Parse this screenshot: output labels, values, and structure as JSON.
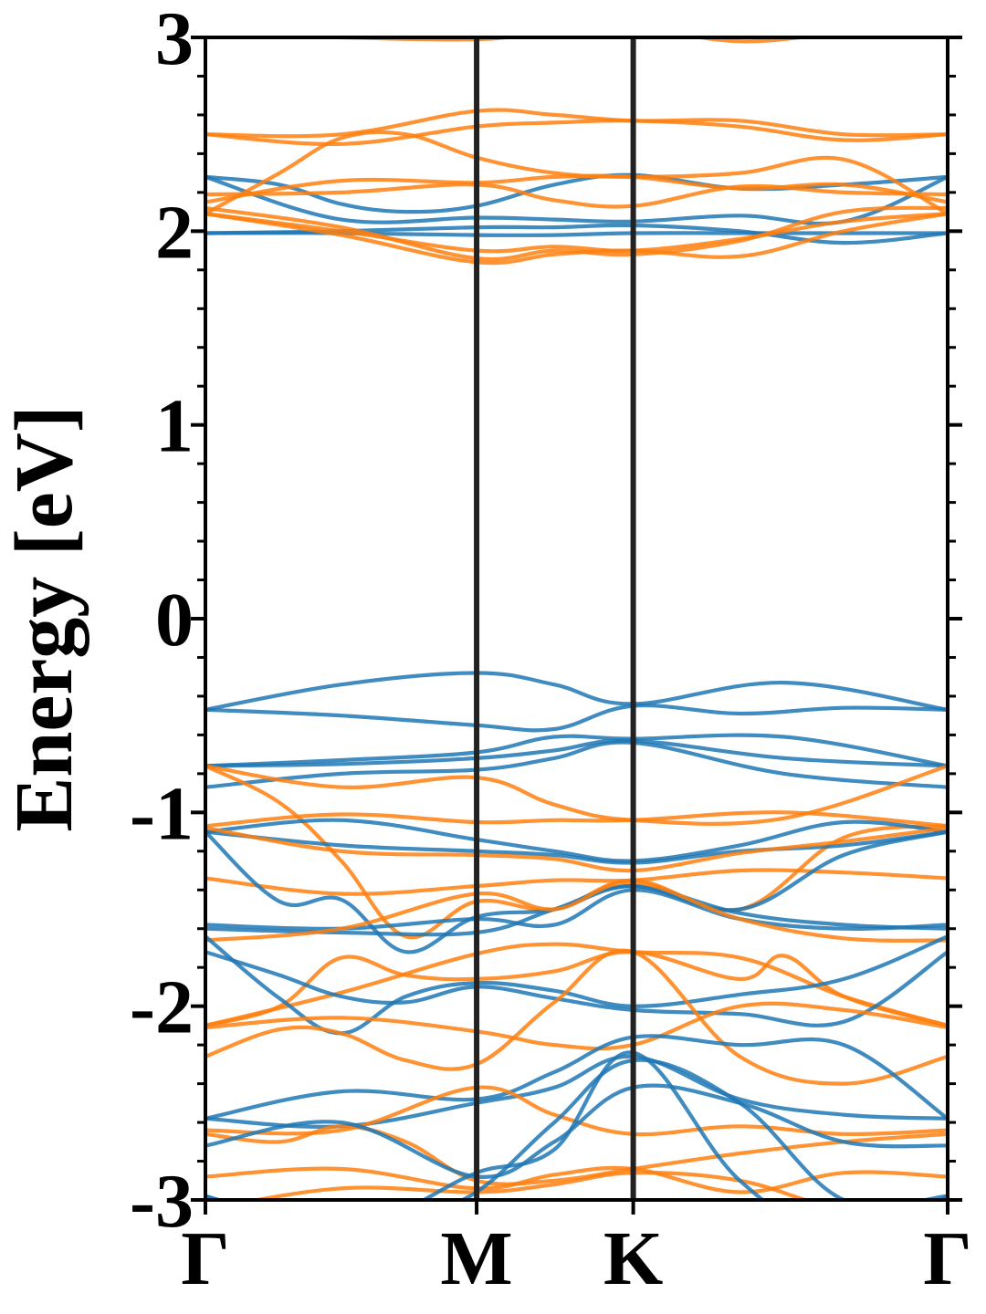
{
  "chart_data": {
    "type": "line",
    "title": "",
    "xlabel": "",
    "ylabel": "Energy [eV]",
    "ylim": [
      -3,
      3
    ],
    "yticks": [
      3,
      2,
      1,
      0,
      -1,
      -2,
      -3
    ],
    "ytick_labels": [
      "3",
      "2",
      "1",
      "0",
      "-1",
      "-2",
      "-3"
    ],
    "k_path": [
      {
        "label": "Γ",
        "k": 0.0
      },
      {
        "label": "M",
        "k": 0.3654
      },
      {
        "label": "K",
        "k": 0.5764
      },
      {
        "label": "Γ",
        "k": 1.0
      }
    ],
    "vertical_lines_at": [
      0.3654,
      0.5764
    ],
    "grid": false,
    "legend": "none",
    "colors": {
      "spin_up": "#1f77b4",
      "spin_down": "#ff7f0e",
      "kline": "#222222"
    },
    "series": [
      {
        "color": "#1f77b4",
        "x": [
          0,
          0.183,
          0.365,
          0.47,
          0.576,
          0.78,
          1.0
        ],
        "values": [
          -0.47,
          -0.34,
          -0.28,
          -0.34,
          -0.44,
          -0.33,
          -0.47
        ]
      },
      {
        "color": "#1f77b4",
        "x": [
          0,
          0.183,
          0.365,
          0.47,
          0.576,
          0.72,
          0.86,
          1.0
        ],
        "values": [
          -0.47,
          -0.5,
          -0.55,
          -0.57,
          -0.45,
          -0.49,
          -0.46,
          -0.47
        ]
      },
      {
        "color": "#1f77b4",
        "x": [
          0,
          0.183,
          0.365,
          0.47,
          0.576,
          0.78,
          1.0
        ],
        "values": [
          -0.76,
          -0.73,
          -0.69,
          -0.61,
          -0.62,
          -0.61,
          -0.76
        ]
      },
      {
        "color": "#1f77b4",
        "x": [
          0,
          0.183,
          0.365,
          0.47,
          0.576,
          0.78,
          1.0
        ],
        "values": [
          -0.76,
          -0.75,
          -0.72,
          -0.68,
          -0.63,
          -0.72,
          -0.76
        ]
      },
      {
        "color": "#1f77b4",
        "x": [
          0,
          0.183,
          0.365,
          0.47,
          0.576,
          0.78,
          1.0
        ],
        "values": [
          -0.87,
          -0.8,
          -0.78,
          -0.72,
          -0.64,
          -0.8,
          -0.87
        ]
      },
      {
        "color": "#ff7f0e",
        "x": [
          0,
          0.183,
          0.365,
          0.47,
          0.576,
          0.78,
          1.0
        ],
        "values": [
          -0.76,
          -0.87,
          -0.82,
          -0.96,
          -1.04,
          -1.03,
          -0.76
        ]
      },
      {
        "color": "#ff7f0e",
        "x": [
          0,
          0.183,
          0.365,
          0.47,
          0.576,
          0.78,
          1.0
        ],
        "values": [
          -1.07,
          -1.01,
          -1.05,
          -1.04,
          -1.04,
          -1.0,
          -1.07
        ]
      },
      {
        "color": "#ff7f0e",
        "x": [
          0,
          0.1,
          0.183,
          0.27,
          0.365,
          0.47,
          0.576,
          0.72,
          0.86,
          1.0
        ],
        "values": [
          -0.76,
          -0.95,
          -1.25,
          -1.64,
          -1.46,
          -1.5,
          -1.35,
          -1.5,
          -1.13,
          -1.07
        ]
      },
      {
        "color": "#1f77b4",
        "x": [
          0,
          0.183,
          0.365,
          0.47,
          0.576,
          0.72,
          0.86,
          1.0
        ],
        "values": [
          -1.1,
          -1.04,
          -1.14,
          -1.2,
          -1.25,
          -1.17,
          -1.05,
          -1.1
        ]
      },
      {
        "color": "#1f77b4",
        "x": [
          0,
          0.183,
          0.365,
          0.47,
          0.576,
          0.72,
          0.86,
          1.0
        ],
        "values": [
          -1.1,
          -1.17,
          -1.2,
          -1.22,
          -1.26,
          -1.2,
          -1.17,
          -1.1
        ]
      },
      {
        "color": "#ff7f0e",
        "x": [
          0,
          0.183,
          0.365,
          0.47,
          0.576,
          0.72,
          0.86,
          1.0
        ],
        "values": [
          -1.08,
          -1.2,
          -1.22,
          -1.24,
          -1.3,
          -1.21,
          -1.15,
          -1.08
        ]
      },
      {
        "color": "#ff7f0e",
        "x": [
          0,
          0.183,
          0.365,
          0.47,
          0.576,
          0.72,
          0.86,
          1.0
        ],
        "values": [
          -1.34,
          -1.42,
          -1.38,
          -1.35,
          -1.35,
          -1.3,
          -1.31,
          -1.34
        ]
      },
      {
        "color": "#1f77b4",
        "x": [
          0,
          0.1,
          0.183,
          0.27,
          0.365,
          0.47,
          0.576,
          0.72,
          0.86,
          1.0
        ],
        "values": [
          -1.1,
          -1.46,
          -1.45,
          -1.72,
          -1.54,
          -1.5,
          -1.38,
          -1.5,
          -1.22,
          -1.1
        ]
      },
      {
        "color": "#1f77b4",
        "x": [
          0,
          0.183,
          0.365,
          0.47,
          0.576,
          0.72,
          0.86,
          1.0
        ],
        "values": [
          -1.58,
          -1.6,
          -1.55,
          -1.58,
          -1.4,
          -1.55,
          -1.6,
          -1.58
        ]
      },
      {
        "color": "#1f77b4",
        "x": [
          0,
          0.183,
          0.365,
          0.47,
          0.576,
          0.72,
          0.86,
          1.0
        ],
        "values": [
          -1.6,
          -1.62,
          -1.62,
          -1.5,
          -1.38,
          -1.52,
          -1.58,
          -1.6
        ]
      },
      {
        "color": "#ff7f0e",
        "x": [
          0,
          0.183,
          0.365,
          0.47,
          0.576,
          0.72,
          0.86,
          1.0
        ],
        "values": [
          -1.66,
          -1.6,
          -1.42,
          -1.5,
          -1.36,
          -1.55,
          -1.65,
          -1.66
        ]
      },
      {
        "color": "#ff7f0e",
        "x": [
          0,
          0.183,
          0.365,
          0.47,
          0.576,
          0.72,
          0.86,
          1.0
        ],
        "values": [
          -2.1,
          -1.93,
          -1.73,
          -1.68,
          -1.72,
          -1.75,
          -1.95,
          -2.1
        ]
      },
      {
        "color": "#ff7f0e",
        "x": [
          0,
          0.1,
          0.183,
          0.27,
          0.365,
          0.47,
          0.576,
          0.72,
          0.78,
          0.86,
          1.0
        ],
        "values": [
          -2.1,
          -2.0,
          -1.75,
          -1.84,
          -1.86,
          -1.82,
          -1.72,
          -1.86,
          -1.74,
          -1.95,
          -2.1
        ]
      },
      {
        "color": "#1f77b4",
        "x": [
          0,
          0.1,
          0.183,
          0.27,
          0.365,
          0.47,
          0.576,
          0.72,
          0.86,
          1.0
        ],
        "values": [
          -1.64,
          -1.96,
          -2.14,
          -1.95,
          -1.88,
          -1.92,
          -2.0,
          -1.94,
          -1.86,
          -1.64
        ]
      },
      {
        "color": "#1f77b4",
        "x": [
          0,
          0.1,
          0.183,
          0.27,
          0.365,
          0.47,
          0.576,
          0.72,
          0.86,
          1.0
        ],
        "values": [
          -1.72,
          -1.84,
          -1.95,
          -1.98,
          -1.9,
          -1.96,
          -2.02,
          -2.04,
          -2.08,
          -1.72
        ]
      },
      {
        "color": "#ff7f0e",
        "x": [
          0,
          0.183,
          0.365,
          0.47,
          0.576,
          0.72,
          0.86,
          1.0
        ],
        "values": [
          -2.11,
          -2.06,
          -2.13,
          -2.2,
          -2.2,
          -2.0,
          -2.02,
          -2.11
        ]
      },
      {
        "color": "#ff7f0e",
        "x": [
          0,
          0.1,
          0.183,
          0.27,
          0.365,
          0.47,
          0.576,
          0.72,
          0.86,
          1.0
        ],
        "values": [
          -2.26,
          -2.12,
          -2.14,
          -2.28,
          -2.3,
          -1.98,
          -1.72,
          -2.26,
          -2.4,
          -2.26
        ]
      },
      {
        "color": "#1f77b4",
        "x": [
          0,
          0.183,
          0.365,
          0.47,
          0.576,
          0.72,
          0.86,
          1.0
        ],
        "values": [
          -2.58,
          -2.44,
          -2.48,
          -2.34,
          -2.16,
          -2.2,
          -2.2,
          -2.58
        ]
      },
      {
        "color": "#1f77b4",
        "x": [
          0,
          0.183,
          0.365,
          0.47,
          0.576,
          0.72,
          0.86,
          1.0
        ],
        "values": [
          -2.58,
          -2.62,
          -2.5,
          -2.42,
          -2.26,
          -2.48,
          -2.56,
          -2.58
        ]
      },
      {
        "color": "#ff7f0e",
        "x": [
          0,
          0.183,
          0.365,
          0.47,
          0.576,
          0.72,
          0.86,
          1.0
        ],
        "values": [
          -2.64,
          -2.64,
          -2.42,
          -2.56,
          -2.66,
          -2.62,
          -2.66,
          -2.64
        ]
      },
      {
        "color": "#ff7f0e",
        "x": [
          0,
          0.1,
          0.183,
          0.27,
          0.365,
          0.47,
          0.576,
          0.72,
          0.86,
          1.0
        ],
        "values": [
          -2.66,
          -2.7,
          -2.62,
          -2.7,
          -2.9,
          -2.9,
          -2.84,
          -2.76,
          -2.7,
          -2.66
        ]
      },
      {
        "color": "#1f77b4",
        "x": [
          0,
          0.183,
          0.365,
          0.47,
          0.576,
          0.72,
          0.86,
          1.0
        ],
        "values": [
          -2.72,
          -2.6,
          -2.88,
          -2.7,
          -2.42,
          -2.5,
          -2.7,
          -2.72
        ]
      },
      {
        "color": "#ff7f0e",
        "x": [
          0,
          0.183,
          0.365,
          0.47,
          0.576,
          0.72,
          0.86,
          1.0
        ],
        "values": [
          -2.88,
          -2.84,
          -2.94,
          -2.87,
          -2.84,
          -2.96,
          -2.86,
          -2.88
        ]
      },
      {
        "color": "#ff7f0e",
        "x": [
          0,
          0.183,
          0.365,
          0.47,
          0.576,
          0.72,
          0.86,
          1.0
        ],
        "values": [
          -3.05,
          -2.94,
          -2.96,
          -2.92,
          -2.86,
          -2.9,
          -3.05,
          -3.05
        ]
      },
      {
        "color": "#1f77b4",
        "x": [
          0,
          0.1,
          0.183,
          0.27,
          0.365,
          0.47,
          0.576,
          0.72,
          0.86,
          1.0
        ],
        "values": [
          -2.98,
          -3.1,
          -3.2,
          -3.05,
          -2.86,
          -2.74,
          -2.24,
          -2.9,
          -3.2,
          -2.98
        ]
      },
      {
        "color": "#1f77b4",
        "x": [
          0,
          0.1,
          0.183,
          0.27,
          0.365,
          0.47,
          0.576,
          0.72,
          0.86,
          1.0
        ],
        "values": [
          -2.98,
          -3.1,
          -3.25,
          -3.1,
          -2.96,
          -2.6,
          -2.28,
          -2.5,
          -3.0,
          -2.98
        ]
      },
      {
        "color": "#1f77b4",
        "x": [
          0,
          0.183,
          0.365,
          0.47,
          0.576,
          0.72,
          0.86,
          1.0
        ],
        "values": [
          1.99,
          1.99,
          1.98,
          1.98,
          1.99,
          1.99,
          1.99,
          1.99
        ]
      },
      {
        "color": "#1f77b4",
        "x": [
          0,
          0.183,
          0.365,
          0.47,
          0.576,
          0.72,
          0.86,
          1.0
        ],
        "values": [
          1.99,
          2.0,
          2.02,
          2.02,
          2.03,
          2.0,
          1.94,
          1.99
        ]
      },
      {
        "color": "#1f77b4",
        "x": [
          0,
          0.183,
          0.365,
          0.47,
          0.576,
          0.72,
          0.86,
          1.0
        ],
        "values": [
          2.28,
          2.06,
          2.07,
          2.06,
          2.05,
          2.08,
          2.05,
          2.28
        ]
      },
      {
        "color": "#1f77b4",
        "x": [
          0,
          0.1,
          0.183,
          0.27,
          0.365,
          0.47,
          0.576,
          0.72,
          0.86,
          1.0
        ],
        "values": [
          2.28,
          2.24,
          2.14,
          2.1,
          2.13,
          2.24,
          2.29,
          2.22,
          2.24,
          2.28
        ]
      },
      {
        "color": "#ff7f0e",
        "x": [
          0,
          0.183,
          0.365,
          0.47,
          0.576,
          0.72,
          0.86,
          1.0
        ],
        "values": [
          2.5,
          2.5,
          2.62,
          2.6,
          2.57,
          2.57,
          2.5,
          2.5
        ]
      },
      {
        "color": "#ff7f0e",
        "x": [
          0,
          0.183,
          0.365,
          0.47,
          0.576,
          0.72,
          0.86,
          1.0
        ],
        "values": [
          2.5,
          2.45,
          2.54,
          2.56,
          2.57,
          2.54,
          2.47,
          2.5
        ]
      },
      {
        "color": "#ff7f0e",
        "x": [
          0,
          0.1,
          0.183,
          0.27,
          0.365,
          0.47,
          0.576,
          0.72,
          0.86,
          1.0
        ],
        "values": [
          2.09,
          2.3,
          2.48,
          2.5,
          2.38,
          2.3,
          2.28,
          2.3,
          2.37,
          2.09
        ]
      },
      {
        "color": "#ff7f0e",
        "x": [
          0,
          0.183,
          0.365,
          0.47,
          0.576,
          0.72,
          0.86,
          1.0
        ],
        "values": [
          2.15,
          2.26,
          2.25,
          2.28,
          2.28,
          2.22,
          2.24,
          2.15
        ]
      },
      {
        "color": "#ff7f0e",
        "x": [
          0,
          0.183,
          0.365,
          0.47,
          0.576,
          0.72,
          0.86,
          1.0
        ],
        "values": [
          2.19,
          2.2,
          2.24,
          2.16,
          2.13,
          2.23,
          2.2,
          2.19
        ]
      },
      {
        "color": "#ff7f0e",
        "x": [
          0,
          0.183,
          0.365,
          0.47,
          0.576,
          0.72,
          0.86,
          1.0
        ],
        "values": [
          2.09,
          2.0,
          1.9,
          1.92,
          1.9,
          1.96,
          2.05,
          2.09
        ]
      },
      {
        "color": "#ff7f0e",
        "x": [
          0,
          0.183,
          0.365,
          0.47,
          0.576,
          0.72,
          0.86,
          1.0
        ],
        "values": [
          2.09,
          1.98,
          1.84,
          1.88,
          1.9,
          1.87,
          2.0,
          2.09
        ]
      },
      {
        "color": "#ff7f0e",
        "x": [
          0,
          0.183,
          0.365,
          0.47,
          0.576,
          0.72,
          0.86,
          1.0
        ],
        "values": [
          2.12,
          2.02,
          1.86,
          1.9,
          1.88,
          1.95,
          2.1,
          2.12
        ]
      },
      {
        "color": "#ff7f0e",
        "x": [
          0,
          0.183,
          0.365,
          0.47,
          0.576,
          0.72,
          0.86,
          1.0
        ],
        "values": [
          3.02,
          3.0,
          2.99,
          3.03,
          3.05,
          2.98,
          3.02,
          3.02
        ]
      }
    ]
  }
}
